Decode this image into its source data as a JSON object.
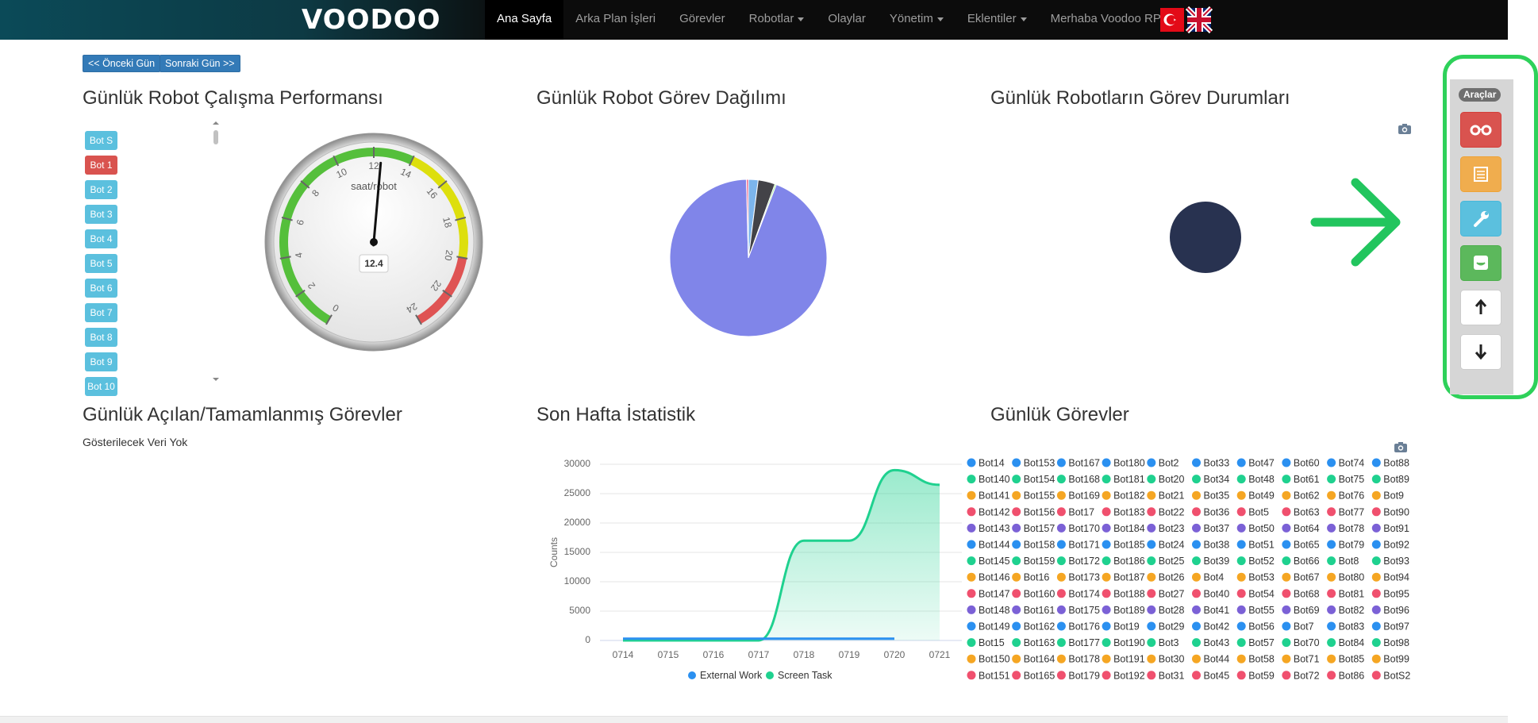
{
  "navbar": {
    "logo": "VOODOO",
    "items": [
      {
        "label": "Ana Sayfa",
        "active": true,
        "dropdown": false
      },
      {
        "label": "Arka Plan İşleri",
        "active": false,
        "dropdown": false
      },
      {
        "label": "Görevler",
        "active": false,
        "dropdown": false
      },
      {
        "label": "Robotlar",
        "active": false,
        "dropdown": true
      },
      {
        "label": "Olaylar",
        "active": false,
        "dropdown": false
      },
      {
        "label": "Yönetim",
        "active": false,
        "dropdown": true
      },
      {
        "label": "Eklentiler",
        "active": false,
        "dropdown": true
      },
      {
        "label": "Merhaba Voodoo RPA",
        "active": false,
        "dropdown": true
      }
    ]
  },
  "day_nav": {
    "prev": "<< Önceki Gün",
    "next": "Sonraki Gün >>"
  },
  "robot_list": {
    "items": [
      "Bot S",
      "Bot 1",
      "Bot 2",
      "Bot 3",
      "Bot 4",
      "Bot 5",
      "Bot 6",
      "Bot 7",
      "Bot 8",
      "Bot 9",
      "Bot 10"
    ],
    "active": 1
  },
  "status_panel": {
    "title": "Günlük Robotların Görev Durumları"
  },
  "opened_tasks_panel": {
    "title": "Günlük Açılan/Tamamlanmış Görevler",
    "message": "Gösterilecek Veri Yok"
  },
  "daily_tasks": {
    "title": "Günlük Görevler",
    "legend_colors": [
      "#2b90f0",
      "#1fd18f",
      "#f5a623",
      "#f0506e",
      "#7b61d6"
    ],
    "legend_columns": [
      [
        "Bot14",
        "Bot140",
        "Bot141",
        "Bot142",
        "Bot143",
        "Bot144",
        "Bot145",
        "Bot146",
        "Bot147",
        "Bot148",
        "Bot149",
        "Bot15",
        "Bot150",
        "Bot151"
      ],
      [
        "Bot153",
        "Bot154",
        "Bot155",
        "Bot156",
        "Bot157",
        "Bot158",
        "Bot159",
        "Bot16",
        "Bot160",
        "Bot161",
        "Bot162",
        "Bot163",
        "Bot164",
        "Bot165"
      ],
      [
        "Bot167",
        "Bot168",
        "Bot169",
        "Bot17",
        "Bot170",
        "Bot171",
        "Bot172",
        "Bot173",
        "Bot174",
        "Bot175",
        "Bot176",
        "Bot177",
        "Bot178",
        "Bot179"
      ],
      [
        "Bot180",
        "Bot181",
        "Bot182",
        "Bot183",
        "Bot184",
        "Bot185",
        "Bot186",
        "Bot187",
        "Bot188",
        "Bot189",
        "Bot19",
        "Bot190",
        "Bot191",
        "Bot192"
      ],
      [
        "Bot2",
        "Bot20",
        "Bot21",
        "Bot22",
        "Bot23",
        "Bot24",
        "Bot25",
        "Bot26",
        "Bot27",
        "Bot28",
        "Bot29",
        "Bot3",
        "Bot30",
        "Bot31"
      ],
      [
        "Bot33",
        "Bot34",
        "Bot35",
        "Bot36",
        "Bot37",
        "Bot38",
        "Bot39",
        "Bot4",
        "Bot40",
        "Bot41",
        "Bot42",
        "Bot43",
        "Bot44",
        "Bot45"
      ],
      [
        "Bot47",
        "Bot48",
        "Bot49",
        "Bot5",
        "Bot50",
        "Bot51",
        "Bot52",
        "Bot53",
        "Bot54",
        "Bot55",
        "Bot56",
        "Bot57",
        "Bot58",
        "Bot59"
      ],
      [
        "Bot60",
        "Bot61",
        "Bot62",
        "Bot63",
        "Bot64",
        "Bot65",
        "Bot66",
        "Bot67",
        "Bot68",
        "Bot69",
        "Bot7",
        "Bot70",
        "Bot71",
        "Bot72"
      ],
      [
        "Bot74",
        "Bot75",
        "Bot76",
        "Bot77",
        "Bot78",
        "Bot79",
        "Bot8",
        "Bot80",
        "Bot81",
        "Bot82",
        "Bot83",
        "Bot84",
        "Bot85",
        "Bot86"
      ],
      [
        "Bot88",
        "Bot89",
        "Bot9",
        "Bot90",
        "Bot91",
        "Bot92",
        "Bot93",
        "Bot94",
        "Bot95",
        "Bot96",
        "Bot97",
        "Bot98",
        "Bot99",
        "BotS2"
      ]
    ]
  },
  "tools": {
    "title": "Araçlar"
  },
  "chart_data": [
    {
      "type": "gauge",
      "title": "Günlük Robot Çalışma Performansı",
      "subtitle": "saat/robot",
      "value": 12.4,
      "ylim": [
        0,
        24
      ],
      "yticks": [
        0,
        2,
        4,
        6,
        8,
        10,
        12,
        14,
        16,
        18,
        20,
        22,
        24
      ],
      "bands": [
        {
          "from": 0,
          "to": 14,
          "color": "#55bf3b"
        },
        {
          "from": 14,
          "to": 20,
          "color": "#dddf0d"
        },
        {
          "from": 20,
          "to": 24,
          "color": "#df5353"
        }
      ]
    },
    {
      "type": "pie",
      "title": "Günlük Robot Görev Dağılımı",
      "values": [
        2,
        3.5,
        0.3,
        93.8,
        0.4
      ],
      "colors": [
        "#7cb5ec",
        "#434348",
        "#90ed7d",
        "#8085e9",
        "#f15c80"
      ]
    },
    {
      "type": "line",
      "title": "Son Hafta İstatistik",
      "ylabel": "Counts",
      "categories": [
        "0714",
        "0715",
        "0716",
        "0717",
        "0718",
        "0719",
        "0720",
        "0721"
      ],
      "ylim": [
        0,
        30000
      ],
      "yticks": [
        0,
        5000,
        10000,
        15000,
        20000,
        25000,
        30000
      ],
      "grid": true,
      "series": [
        {
          "name": "External Work",
          "color": "#2b90f0",
          "values": [
            300,
            300,
            300,
            300,
            300,
            300,
            300,
            null
          ]
        },
        {
          "name": "Screen Task",
          "color": "#1fd18f",
          "values": [
            0,
            0,
            0,
            0,
            17000,
            17000,
            29000,
            26500
          ]
        }
      ]
    }
  ]
}
